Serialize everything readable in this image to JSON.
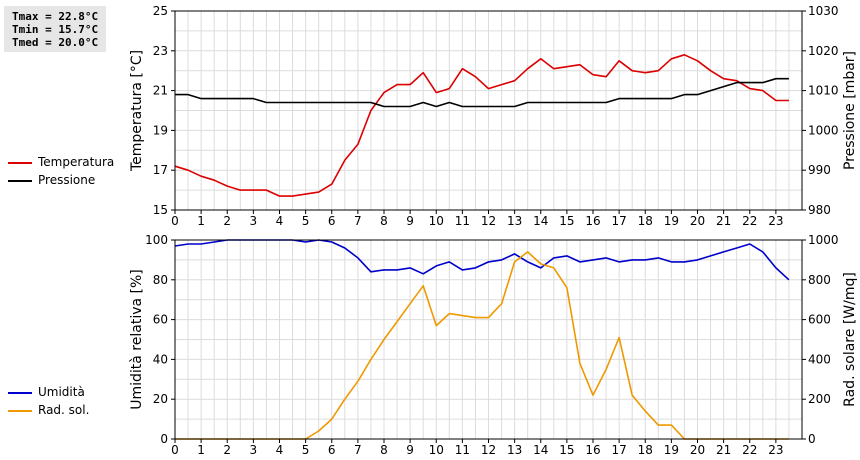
{
  "stats": {
    "tmax": "Tmax = 22.8°C",
    "tmin": "Tmin = 15.7°C",
    "tmed": "Tmed = 20.0°C"
  },
  "chart_data": [
    {
      "type": "line",
      "hour_ticks": [
        "0",
        "1",
        "2",
        "3",
        "4",
        "5",
        "6",
        "7",
        "8",
        "9",
        "10",
        "11",
        "12",
        "13",
        "14",
        "15",
        "16",
        "17",
        "18",
        "19",
        "20",
        "21",
        "22",
        "23"
      ],
      "xlim": [
        0,
        24
      ],
      "grid": true,
      "legend_placement": "left",
      "left_axis": {
        "label": "Temperatura [°C]",
        "ylim": [
          15,
          25
        ],
        "ticks": [
          "15",
          "17",
          "19",
          "21",
          "23",
          "25"
        ]
      },
      "right_axis": {
        "label": "Pressione [mbar]",
        "ylim": [
          980,
          1030
        ],
        "ticks": [
          "980",
          "990",
          "1000",
          "1010",
          "1020",
          "1030"
        ]
      },
      "series": [
        {
          "name": "Temperatura",
          "axis": "left",
          "color": "#dd0000",
          "x": [
            0,
            0.5,
            1,
            1.5,
            2,
            2.5,
            3,
            3.5,
            4,
            4.5,
            5,
            5.5,
            6,
            6.5,
            7,
            7.5,
            8,
            8.5,
            9,
            9.5,
            10,
            10.5,
            11,
            11.5,
            12,
            12.5,
            13,
            13.5,
            14,
            14.5,
            15,
            15.5,
            16,
            16.5,
            17,
            17.5,
            18,
            18.5,
            19,
            19.5,
            20,
            20.5,
            21,
            21.5,
            22,
            22.5,
            23,
            23.5
          ],
          "y": [
            17.2,
            17.0,
            16.7,
            16.5,
            16.2,
            16.0,
            16.0,
            16.0,
            15.7,
            15.7,
            15.8,
            15.9,
            16.3,
            17.5,
            18.3,
            20.0,
            20.9,
            21.3,
            21.3,
            21.9,
            20.9,
            21.1,
            22.1,
            21.7,
            21.1,
            21.3,
            21.5,
            22.1,
            22.6,
            22.1,
            22.2,
            22.3,
            21.8,
            21.7,
            22.5,
            22.0,
            21.9,
            22.0,
            22.6,
            22.8,
            22.5,
            22.0,
            21.6,
            21.5,
            21.1,
            21.0,
            20.5,
            20.5
          ]
        },
        {
          "name": "Pressione",
          "axis": "right",
          "color": "#000000",
          "x": [
            0,
            0.5,
            1,
            1.5,
            2,
            2.5,
            3,
            3.5,
            4,
            4.5,
            5,
            5.5,
            6,
            6.5,
            7,
            7.5,
            8,
            8.5,
            9,
            9.5,
            10,
            10.5,
            11,
            11.5,
            12,
            12.5,
            13,
            13.5,
            14,
            14.5,
            15,
            15.5,
            16,
            16.5,
            17,
            17.5,
            18,
            18.5,
            19,
            19.5,
            20,
            20.5,
            21,
            21.5,
            22,
            22.5,
            23,
            23.5
          ],
          "y": [
            1009,
            1009,
            1008,
            1008,
            1008,
            1008,
            1008,
            1007,
            1007,
            1007,
            1007,
            1007,
            1007,
            1007,
            1007,
            1007,
            1006,
            1006,
            1006,
            1007,
            1006,
            1007,
            1006,
            1006,
            1006,
            1006,
            1006,
            1007,
            1007,
            1007,
            1007,
            1007,
            1007,
            1007,
            1008,
            1008,
            1008,
            1008,
            1008,
            1009,
            1009,
            1010,
            1011,
            1012,
            1012,
            1012,
            1013,
            1013
          ]
        }
      ]
    },
    {
      "type": "line",
      "hour_ticks": [
        "0",
        "1",
        "2",
        "3",
        "4",
        "5",
        "6",
        "7",
        "8",
        "9",
        "10",
        "11",
        "12",
        "13",
        "14",
        "15",
        "16",
        "17",
        "18",
        "19",
        "20",
        "21",
        "22",
        "23"
      ],
      "xlim": [
        0,
        24
      ],
      "grid": true,
      "legend_placement": "left",
      "left_axis": {
        "label": "Umidità relativa [%]",
        "ylim": [
          0,
          100
        ],
        "ticks": [
          "0",
          "20",
          "40",
          "60",
          "80",
          "100"
        ]
      },
      "right_axis": {
        "label": "Rad. solare [W/mq]",
        "ylim": [
          0,
          1000
        ],
        "ticks": [
          "0",
          "200",
          "400",
          "600",
          "800",
          "1000"
        ]
      },
      "series": [
        {
          "name": "Umidità",
          "axis": "left",
          "color": "#0000cc",
          "x": [
            0,
            0.5,
            1,
            1.5,
            2,
            2.5,
            3,
            3.5,
            4,
            4.5,
            5,
            5.5,
            6,
            6.5,
            7,
            7.5,
            8,
            8.5,
            9,
            9.5,
            10,
            10.5,
            11,
            11.5,
            12,
            12.5,
            13,
            13.5,
            14,
            14.5,
            15,
            15.5,
            16,
            16.5,
            17,
            17.5,
            18,
            18.5,
            19,
            19.5,
            20,
            20.5,
            21,
            21.5,
            22,
            22.5,
            23,
            23.5
          ],
          "y": [
            97,
            98,
            98,
            99,
            100,
            100,
            100,
            100,
            100,
            100,
            99,
            100,
            99,
            96,
            91,
            84,
            85,
            85,
            86,
            83,
            87,
            89,
            85,
            86,
            89,
            90,
            93,
            89,
            86,
            91,
            92,
            89,
            90,
            91,
            89,
            90,
            90,
            91,
            89,
            89,
            90,
            92,
            94,
            96,
            98,
            94,
            86,
            80
          ]
        },
        {
          "name": "Rad. sol.",
          "axis": "right",
          "color": "#ee9900",
          "x": [
            0,
            0.5,
            1,
            1.5,
            2,
            2.5,
            3,
            3.5,
            4,
            4.5,
            5,
            5.5,
            6,
            6.5,
            7,
            7.5,
            8,
            8.5,
            9,
            9.5,
            10,
            10.5,
            11,
            11.5,
            12,
            12.5,
            13,
            13.5,
            14,
            14.5,
            15,
            15.5,
            16,
            16.5,
            17,
            17.5,
            18,
            18.5,
            19,
            19.5,
            20,
            20.5,
            21,
            21.5,
            22,
            22.5,
            23,
            23.5
          ],
          "y": [
            0,
            0,
            0,
            0,
            0,
            0,
            0,
            0,
            0,
            0,
            0,
            40,
            100,
            200,
            290,
            400,
            500,
            590,
            680,
            770,
            570,
            630,
            620,
            610,
            610,
            680,
            890,
            940,
            880,
            860,
            760,
            380,
            220,
            350,
            510,
            220,
            140,
            70,
            70,
            0,
            0,
            0,
            0,
            0,
            0,
            0,
            0,
            0
          ]
        }
      ]
    }
  ]
}
